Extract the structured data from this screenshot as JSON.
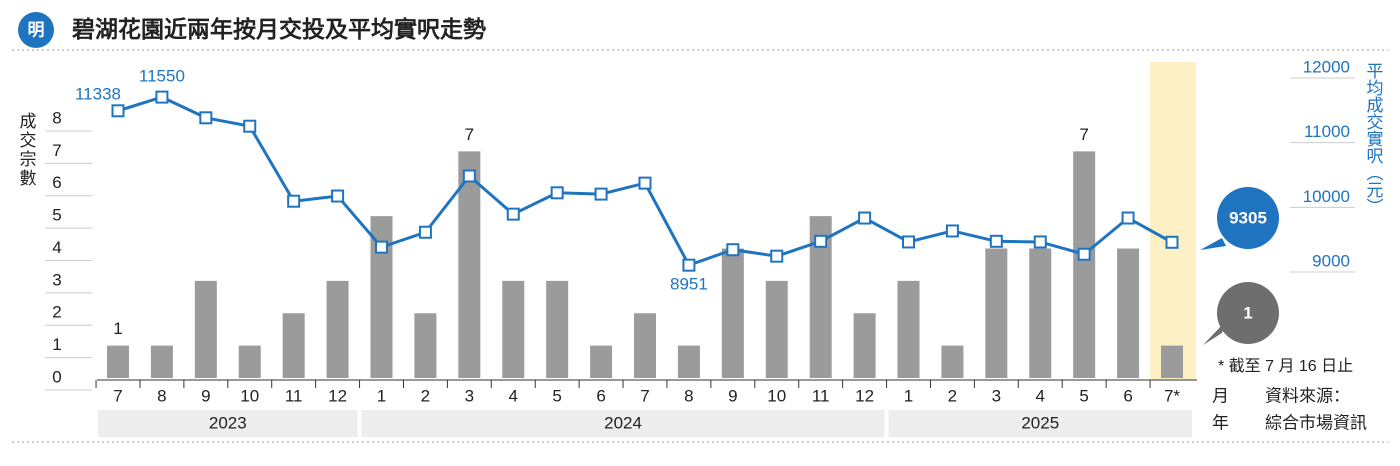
{
  "chart_data": {
    "type": "bar-line",
    "title": "碧湖花園近兩年按月交投及平均實呎走勢",
    "logo": "明",
    "categories": [
      "7",
      "8",
      "9",
      "10",
      "11",
      "12",
      "1",
      "2",
      "3",
      "4",
      "5",
      "6",
      "7",
      "8",
      "9",
      "10",
      "11",
      "12",
      "1",
      "2",
      "3",
      "4",
      "5",
      "6",
      "7*"
    ],
    "x_groups": [
      "2023",
      "2024",
      "2025"
    ],
    "x_group_sizes_label": null,
    "month_label": "月",
    "year_label": "年",
    "series": [
      {
        "name": "成交宗數",
        "type": "bar",
        "color": "#9b9b9b",
        "values": [
          1,
          1,
          3,
          1,
          2,
          3,
          5,
          2,
          7,
          3,
          3,
          1,
          2,
          1,
          4,
          3,
          5,
          2,
          3,
          1,
          4,
          4,
          7,
          4,
          1
        ]
      },
      {
        "name": "平均成交實呎（元）",
        "type": "line",
        "axis": "y2",
        "color": "#1f74c0",
        "values": [
          11338,
          11550,
          11230,
          11100,
          9940,
          10020,
          9230,
          9460,
          10330,
          9740,
          10070,
          10050,
          10220,
          8951,
          9190,
          9090,
          9320,
          9680,
          9310,
          9480,
          9320,
          9310,
          9120,
          9680,
          9305
        ]
      }
    ],
    "ylim": [
      0,
      8
    ],
    "yticks": [
      0,
      1,
      2,
      3,
      4,
      5,
      6,
      7,
      8
    ],
    "y2lim": [
      9000,
      12000
    ],
    "y2ticks": [
      9000,
      10000,
      11000,
      12000
    ],
    "note": "* 截至 7 月 16 日止",
    "source": [
      "資料來源：",
      "綜合市場資訊"
    ]
  }
}
